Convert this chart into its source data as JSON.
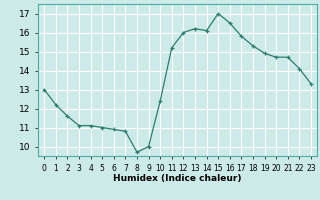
{
  "x": [
    0,
    1,
    2,
    3,
    4,
    5,
    6,
    7,
    8,
    9,
    10,
    11,
    12,
    13,
    14,
    15,
    16,
    17,
    18,
    19,
    20,
    21,
    22,
    23
  ],
  "y": [
    13.0,
    12.2,
    11.6,
    11.1,
    11.1,
    11.0,
    10.9,
    10.8,
    9.7,
    10.0,
    12.4,
    15.2,
    16.0,
    16.2,
    16.1,
    17.0,
    16.5,
    15.8,
    15.3,
    14.9,
    14.7,
    14.7,
    14.1,
    13.3
  ],
  "xlabel": "Humidex (Indice chaleur)",
  "ylim": [
    9.5,
    17.5
  ],
  "xlim": [
    -0.5,
    23.5
  ],
  "yticks": [
    10,
    11,
    12,
    13,
    14,
    15,
    16,
    17
  ],
  "xtick_labels": [
    "0",
    "1",
    "2",
    "3",
    "4",
    "5",
    "6",
    "7",
    "8",
    "9",
    "10",
    "11",
    "12",
    "13",
    "14",
    "15",
    "16",
    "17",
    "18",
    "19",
    "20",
    "21",
    "22",
    "23"
  ],
  "line_color": "#2d7d6e",
  "marker": "+",
  "bg_color": "#cceae8",
  "grid_color": "#ffffff",
  "spine_color": "#4aada0"
}
